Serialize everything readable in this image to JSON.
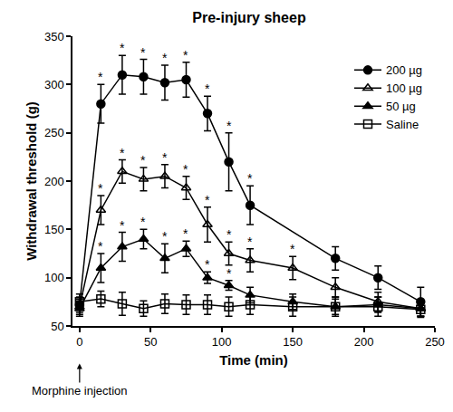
{
  "chart_data": {
    "type": "line",
    "title": "Pre-injury sheep",
    "x_label": "Time (min)",
    "y_label": "Withdrawal threshold (g)",
    "xlim": [
      -5,
      250
    ],
    "xticks": [
      0,
      50,
      100,
      150,
      200,
      250
    ],
    "ylim": [
      50,
      350
    ],
    "yticks": [
      50,
      100,
      150,
      200,
      250,
      300,
      350
    ],
    "grid": false,
    "legend": "upper right",
    "significance_mark": "*",
    "annotations": [
      {
        "x": 0,
        "text": "Morphine injection"
      }
    ],
    "series": [
      {
        "name": "200 µg",
        "color": "#000000",
        "marker": "circle",
        "line_style": "solid",
        "x": [
          0,
          15,
          30,
          45,
          60,
          75,
          90,
          105,
          120,
          180,
          210,
          240
        ],
        "values": [
          72,
          280,
          310,
          308,
          302,
          305,
          270,
          220,
          175,
          120,
          100,
          75
        ],
        "errors": [
          8,
          20,
          20,
          18,
          18,
          18,
          18,
          30,
          20,
          12,
          12,
          15
        ],
        "significant": [
          false,
          true,
          true,
          true,
          true,
          true,
          true,
          true,
          true,
          false,
          false,
          false
        ]
      },
      {
        "name": "100 µg",
        "color": "#000000",
        "marker": "triangle-up-open",
        "line_style": "solid",
        "x": [
          0,
          15,
          30,
          45,
          60,
          75,
          90,
          105,
          120,
          150,
          180,
          210,
          240
        ],
        "values": [
          70,
          170,
          210,
          202,
          205,
          193,
          155,
          125,
          118,
          110,
          90,
          75,
          68
        ],
        "errors": [
          8,
          15,
          12,
          12,
          12,
          12,
          18,
          12,
          12,
          12,
          10,
          10,
          8
        ],
        "significant": [
          false,
          true,
          true,
          true,
          true,
          true,
          true,
          true,
          true,
          true,
          false,
          false,
          false
        ]
      },
      {
        "name": "50 µg",
        "color": "#000000",
        "marker": "triangle-up",
        "line_style": "solid",
        "x": [
          0,
          15,
          30,
          45,
          60,
          75,
          90,
          105,
          120,
          150,
          180,
          210,
          240
        ],
        "values": [
          68,
          110,
          132,
          140,
          120,
          130,
          100,
          92,
          82,
          75,
          70,
          72,
          68
        ],
        "errors": [
          8,
          15,
          15,
          10,
          15,
          8,
          6,
          5,
          8,
          8,
          8,
          8,
          8
        ],
        "significant": [
          false,
          true,
          true,
          true,
          true,
          true,
          true,
          true,
          false,
          false,
          false,
          false,
          false
        ]
      },
      {
        "name": "Saline",
        "color": "#000000",
        "marker": "square-open",
        "line_style": "solid",
        "x": [
          0,
          15,
          30,
          45,
          60,
          75,
          90,
          105,
          120,
          150,
          180,
          210,
          240
        ],
        "values": [
          75,
          78,
          73,
          68,
          73,
          72,
          72,
          70,
          72,
          70,
          70,
          70,
          67
        ],
        "errors": [
          8,
          8,
          12,
          8,
          10,
          10,
          10,
          10,
          10,
          10,
          10,
          10,
          8
        ],
        "significant": [
          false,
          false,
          false,
          false,
          false,
          false,
          false,
          false,
          false,
          false,
          false,
          false,
          false
        ]
      }
    ]
  }
}
